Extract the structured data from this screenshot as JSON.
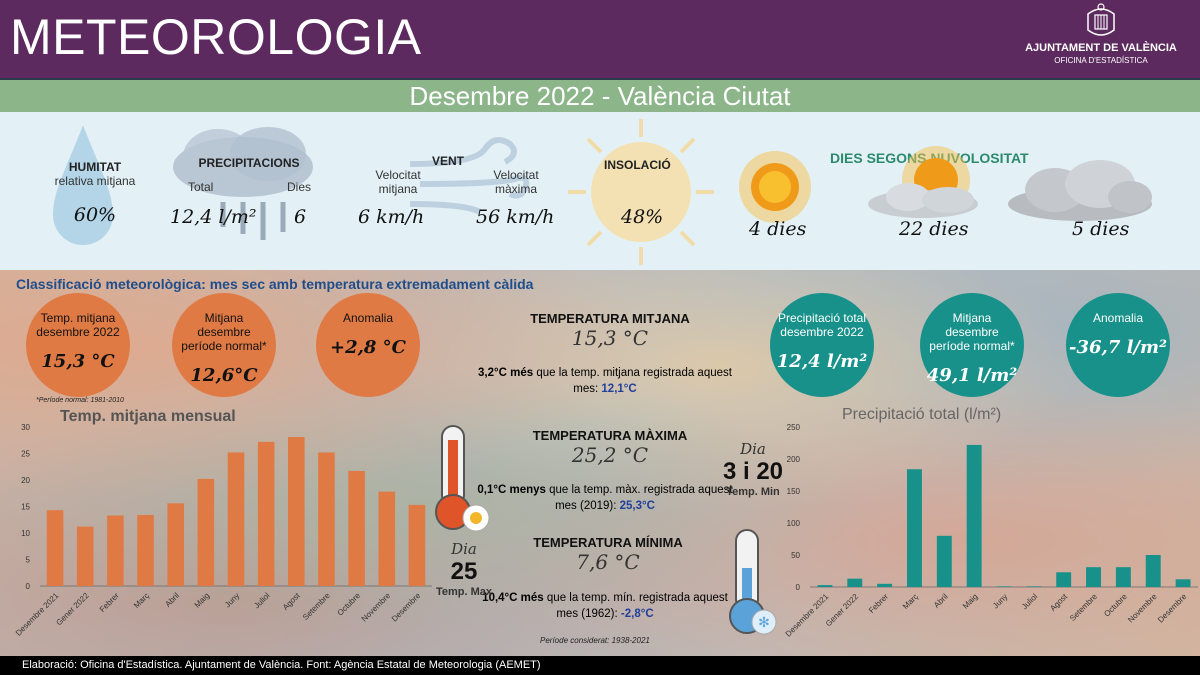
{
  "header": {
    "title": "METEOROLOGIA",
    "org_name": "AJUNTAMENT DE VALÈNCIA",
    "org_sub": "OFICINA D'ESTADÍSTICA"
  },
  "subheader": "Desembre 2022 - València Ciutat",
  "stats": {
    "humidity": {
      "head": "HUMITAT",
      "sub": "relativa mitjana",
      "value": "60%"
    },
    "precip": {
      "head": "PRECIPITACIONS",
      "total_label": "Total",
      "days_label": "Dies",
      "total": "12,4 l/m²",
      "days": "6"
    },
    "wind": {
      "head": "VENT",
      "avg_label": "Velocitat mitjana",
      "max_label": "Velocitat màxima",
      "avg": "6 km/h",
      "max": "56 km/h"
    },
    "insolation": {
      "head": "INSOLACIÓ",
      "value": "48%"
    },
    "cloud_title": "DIES SEGONS NUVOLOSITAT",
    "clear_days": "4 dies",
    "partly_days": "22 dies",
    "cloudy_days": "5 dies"
  },
  "classification": "Classificació meteorològica: mes sec amb temperatura extremadament càlida",
  "temp_circles": [
    {
      "label": "Temp. mitjana desembre 2022",
      "value": "15,3 °C"
    },
    {
      "label": "Mitjana desembre període normal*",
      "value": "12,6°C"
    },
    {
      "label": "Anomalia",
      "value": "+2,8 °C"
    }
  ],
  "precip_circles": [
    {
      "label": "Precipitació total desembre 2022",
      "value": "12,4 l/m²"
    },
    {
      "label": "Mitjana desembre període normal*",
      "value": "49,1 l/m²"
    },
    {
      "label": "Anomalia",
      "value": "-36,7 l/m²"
    }
  ],
  "normal_note": "*Període normal: 1981-2010",
  "center": {
    "avg_head": "TEMPERATURA MITJANA",
    "avg_val": "15,3 °C",
    "avg_note_a": "3,2°C",
    "avg_note_b": "més",
    "avg_note_c": "que la temp. mitjana registrada aquest mes:",
    "avg_note_d": "12,1°C",
    "max_head": "TEMPERATURA MÀXIMA",
    "max_val": "25,2 °C",
    "max_note_a": "0,1°C",
    "max_note_b": "menys",
    "max_note_c": "que la temp. màx. registrada aquest mes (2019):",
    "max_note_d": "25,3°C",
    "min_head": "TEMPERATURA MÍNIMA",
    "min_val": "7,6 °C",
    "min_note_a": "10,4°C",
    "min_note_b": "més",
    "min_note_c": "que la temp. mín. registrada aquest mes (1962):",
    "min_note_d": "-2,8°C",
    "period_note": "Període considerat: 1938-2021"
  },
  "dia_max": {
    "label": "Dia",
    "value": "25",
    "sub": "Temp. Max"
  },
  "dia_min": {
    "label": "Dia",
    "value": "3 i 20",
    "sub": "Temp. Min"
  },
  "footer": "Elaboració: Oficina d'Estadística. Ajuntament de València. Font: Agència Estatal de Meteorologia (AEMET)",
  "colors": {
    "orange": "#e07a45",
    "teal": "#17918a",
    "purple": "#5c2a5e",
    "green": "#8cb58a"
  },
  "chart_data": [
    {
      "type": "bar",
      "title": "Temp. mitjana mensual",
      "categories": [
        "Desembre 2021",
        "Gener 2022",
        "Febrer",
        "Març",
        "Abril",
        "Maig",
        "Juny",
        "Juliol",
        "Agost",
        "Setembre",
        "Octubre",
        "Novembre",
        "Desembre"
      ],
      "values": [
        14.3,
        11.2,
        13.3,
        13.4,
        15.6,
        20.2,
        25.2,
        27.2,
        28.1,
        25.2,
        21.7,
        17.8,
        15.3
      ],
      "ylim": [
        0,
        30
      ],
      "yticks": [
        0,
        5,
        10,
        15,
        20,
        25,
        30
      ],
      "color": "#e07a45"
    },
    {
      "type": "bar",
      "title": "Precipitació total (l/m²)",
      "categories": [
        "Desembre 2021",
        "Gener 2022",
        "Febrer",
        "Març",
        "Abril",
        "Maig",
        "Juny",
        "Juliol",
        "Agost",
        "Setembre",
        "Octubre",
        "Novembre",
        "Desembre"
      ],
      "values": [
        3,
        13,
        5,
        184,
        80,
        222,
        1,
        1,
        23,
        31,
        31,
        50,
        12
      ],
      "ylim": [
        0,
        250
      ],
      "yticks": [
        0,
        50,
        100,
        150,
        200,
        250
      ],
      "color": "#17918a"
    }
  ]
}
